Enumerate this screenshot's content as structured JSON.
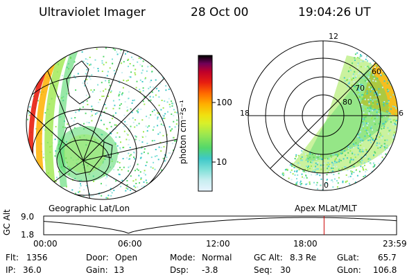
{
  "header": {
    "instrument": "Ultraviolet Imager",
    "date": "28 Oct 00",
    "time": "19:04:26 UT"
  },
  "colorbar": {
    "unit_label": "photon cm⁻²s⁻¹",
    "tick_100": "100",
    "tick_10": "10",
    "colors": [
      "#e8f4ff",
      "#c8eef0",
      "#7fe0d8",
      "#3ec8c8",
      "#54d86a",
      "#9ee84e",
      "#d8f02a",
      "#f0e010",
      "#ffb000",
      "#ff6a00",
      "#e81e10",
      "#c0002a",
      "#900048",
      "#5a0060",
      "#000000"
    ]
  },
  "left_panel": {
    "caption": "Geographic Lat/Lon"
  },
  "right_panel": {
    "caption": "Apex MLat/MLT",
    "mlt_12": "12",
    "mlt_18": "18",
    "mlt_6": "6",
    "mlt_0": "0",
    "lat_60": "60",
    "lat_70": "70",
    "lat_80": "80"
  },
  "altitude_plot": {
    "y_label": "GC Alt",
    "y_max": "9.0",
    "y_min": "1.8",
    "x_ticks": [
      "00:00",
      "06:00",
      "12:00",
      "18:00",
      "23:59"
    ],
    "current_time_fraction": 0.7945,
    "marker_color": "#cc0000"
  },
  "status": {
    "flt_label": "Flt:",
    "flt_value": "1356",
    "ip_label": "IP:",
    "ip_value": "36.0",
    "door_label": "Door:",
    "door_value": "Open",
    "gain_label": "Gain:",
    "gain_value": "13",
    "mode_label": "Mode:",
    "mode_value": "Normal",
    "dsp_label": "Dsp:",
    "dsp_value": "-3.8",
    "gcalt_label": "GC Alt:",
    "gcalt_value": "8.3 Re",
    "seq_label": "Seq:",
    "seq_value": "30",
    "glat_label": "GLat:",
    "glat_value": "65.7",
    "glon_label": "GLon:",
    "glon_value": "106.8"
  }
}
